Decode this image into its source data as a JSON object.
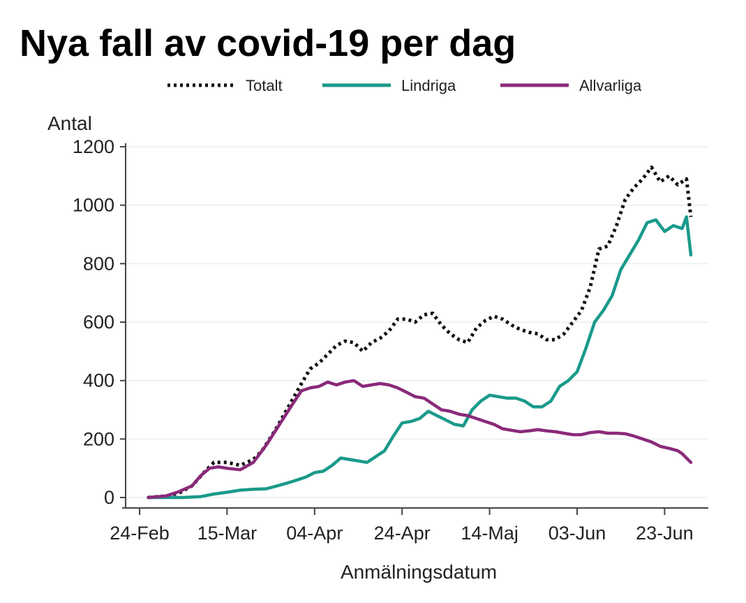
{
  "chart_data": {
    "type": "line",
    "title": "Nya fall av covid-19 per dag",
    "xlabel": "Anmälningsdatum",
    "ylabel": "Antal",
    "ylim": [
      0,
      1200
    ],
    "yticks": [
      "0",
      "200",
      "400",
      "600",
      "800",
      "1000",
      "1200"
    ],
    "xlim": [
      0,
      126
    ],
    "xticks": [
      {
        "label": "24-Feb",
        "day": 0
      },
      {
        "label": "15-Mar",
        "day": 20
      },
      {
        "label": "04-Apr",
        "day": 40
      },
      {
        "label": "24-Apr",
        "day": 60
      },
      {
        "label": "14-Maj",
        "day": 80
      },
      {
        "label": "03-Jun",
        "day": 100
      },
      {
        "label": "23-Jun",
        "day": 120
      }
    ],
    "grid": true,
    "legend": "top",
    "series": [
      {
        "name": "Totalt",
        "color": "#111111",
        "style": "dotted",
        "points": [
          [
            2,
            0
          ],
          [
            6,
            5
          ],
          [
            9,
            15
          ],
          [
            12,
            40
          ],
          [
            15,
            90
          ],
          [
            17,
            120
          ],
          [
            20,
            120
          ],
          [
            23,
            110
          ],
          [
            26,
            130
          ],
          [
            28,
            160
          ],
          [
            31,
            230
          ],
          [
            34,
            310
          ],
          [
            37,
            390
          ],
          [
            39,
            440
          ],
          [
            41,
            460
          ],
          [
            43,
            490
          ],
          [
            45,
            520
          ],
          [
            47,
            535
          ],
          [
            49,
            530
          ],
          [
            51,
            500
          ],
          [
            53,
            530
          ],
          [
            55,
            545
          ],
          [
            57,
            570
          ],
          [
            59,
            610
          ],
          [
            61,
            610
          ],
          [
            63,
            600
          ],
          [
            65,
            625
          ],
          [
            67,
            630
          ],
          [
            69,
            590
          ],
          [
            71,
            560
          ],
          [
            73,
            540
          ],
          [
            75,
            530
          ],
          [
            77,
            580
          ],
          [
            79,
            605
          ],
          [
            81,
            620
          ],
          [
            83,
            610
          ],
          [
            85,
            590
          ],
          [
            87,
            575
          ],
          [
            89,
            565
          ],
          [
            91,
            560
          ],
          [
            93,
            540
          ],
          [
            95,
            540
          ],
          [
            97,
            560
          ],
          [
            99,
            600
          ],
          [
            101,
            640
          ],
          [
            103,
            720
          ],
          [
            105,
            850
          ],
          [
            107,
            860
          ],
          [
            109,
            930
          ],
          [
            111,
            1020
          ],
          [
            113,
            1060
          ],
          [
            115,
            1090
          ],
          [
            117,
            1130
          ],
          [
            119,
            1080
          ],
          [
            121,
            1100
          ],
          [
            123,
            1070
          ],
          [
            125,
            1090
          ],
          [
            126,
            960
          ]
        ]
      },
      {
        "name": "Lindriga",
        "color": "#1a9a8a",
        "style": "solid",
        "points": [
          [
            2,
            0
          ],
          [
            6,
            0
          ],
          [
            10,
            0
          ],
          [
            14,
            3
          ],
          [
            17,
            12
          ],
          [
            20,
            18
          ],
          [
            23,
            25
          ],
          [
            26,
            28
          ],
          [
            29,
            30
          ],
          [
            32,
            42
          ],
          [
            35,
            55
          ],
          [
            38,
            70
          ],
          [
            40,
            85
          ],
          [
            42,
            90
          ],
          [
            44,
            110
          ],
          [
            46,
            135
          ],
          [
            48,
            130
          ],
          [
            50,
            125
          ],
          [
            52,
            120
          ],
          [
            54,
            140
          ],
          [
            56,
            160
          ],
          [
            58,
            210
          ],
          [
            60,
            255
          ],
          [
            62,
            260
          ],
          [
            64,
            270
          ],
          [
            66,
            295
          ],
          [
            68,
            280
          ],
          [
            70,
            265
          ],
          [
            72,
            250
          ],
          [
            74,
            245
          ],
          [
            76,
            300
          ],
          [
            78,
            330
          ],
          [
            80,
            350
          ],
          [
            82,
            345
          ],
          [
            84,
            340
          ],
          [
            86,
            340
          ],
          [
            88,
            330
          ],
          [
            90,
            310
          ],
          [
            92,
            310
          ],
          [
            94,
            330
          ],
          [
            96,
            380
          ],
          [
            98,
            400
          ],
          [
            100,
            430
          ],
          [
            102,
            510
          ],
          [
            104,
            600
          ],
          [
            106,
            640
          ],
          [
            108,
            690
          ],
          [
            110,
            780
          ],
          [
            112,
            830
          ],
          [
            114,
            880
          ],
          [
            116,
            940
          ],
          [
            118,
            950
          ],
          [
            120,
            910
          ],
          [
            122,
            930
          ],
          [
            124,
            920
          ],
          [
            125,
            960
          ],
          [
            126,
            830
          ]
        ]
      },
      {
        "name": "Allvarliga",
        "color": "#8a2a7a",
        "style": "solid",
        "points": [
          [
            2,
            0
          ],
          [
            6,
            5
          ],
          [
            9,
            20
          ],
          [
            12,
            40
          ],
          [
            14,
            75
          ],
          [
            16,
            100
          ],
          [
            18,
            105
          ],
          [
            20,
            100
          ],
          [
            23,
            95
          ],
          [
            26,
            120
          ],
          [
            29,
            180
          ],
          [
            32,
            250
          ],
          [
            35,
            320
          ],
          [
            37,
            365
          ],
          [
            39,
            375
          ],
          [
            41,
            380
          ],
          [
            43,
            395
          ],
          [
            45,
            385
          ],
          [
            47,
            395
          ],
          [
            49,
            400
          ],
          [
            51,
            380
          ],
          [
            53,
            385
          ],
          [
            55,
            390
          ],
          [
            57,
            385
          ],
          [
            59,
            375
          ],
          [
            61,
            360
          ],
          [
            63,
            345
          ],
          [
            65,
            340
          ],
          [
            67,
            320
          ],
          [
            69,
            300
          ],
          [
            71,
            295
          ],
          [
            73,
            285
          ],
          [
            75,
            280
          ],
          [
            77,
            270
          ],
          [
            79,
            260
          ],
          [
            81,
            250
          ],
          [
            83,
            235
          ],
          [
            85,
            230
          ],
          [
            87,
            225
          ],
          [
            89,
            228
          ],
          [
            91,
            232
          ],
          [
            93,
            228
          ],
          [
            95,
            225
          ],
          [
            97,
            220
          ],
          [
            99,
            215
          ],
          [
            101,
            215
          ],
          [
            103,
            222
          ],
          [
            105,
            225
          ],
          [
            107,
            220
          ],
          [
            109,
            220
          ],
          [
            111,
            218
          ],
          [
            113,
            210
          ],
          [
            115,
            200
          ],
          [
            117,
            190
          ],
          [
            119,
            175
          ],
          [
            121,
            168
          ],
          [
            123,
            160
          ],
          [
            124,
            150
          ],
          [
            126,
            120
          ]
        ]
      }
    ]
  }
}
